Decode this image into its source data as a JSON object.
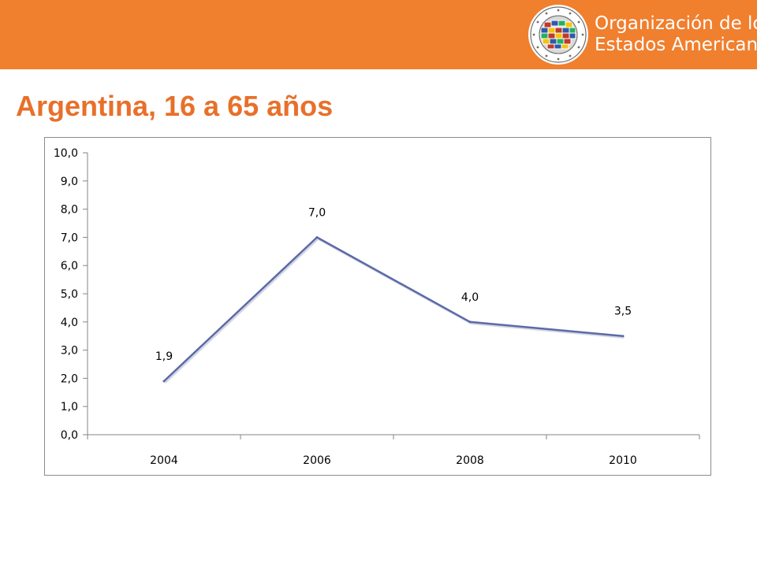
{
  "header": {
    "org_name_line1": "Organización de los",
    "org_name_line2": "Estados Americanos",
    "logo": "oas-seal-logo",
    "colors": {
      "bar": "#f07f2e",
      "title": "#e8702a"
    }
  },
  "slide": {
    "title": "Argentina, 16 a 65 años"
  },
  "chart_data": {
    "type": "line",
    "title": "",
    "xlabel": "",
    "ylabel": "",
    "categories": [
      "2004",
      "2006",
      "2008",
      "2010"
    ],
    "series": [
      {
        "values": [
          1.9,
          7.0,
          4.0,
          3.5
        ],
        "labels": [
          "1,9",
          "7,0",
          "4,0",
          "3,5"
        ],
        "color": "#5b6aa8"
      }
    ],
    "ylim": [
      0,
      10
    ],
    "yticks": [
      "0,0",
      "1,0",
      "2,0",
      "3,0",
      "4,0",
      "5,0",
      "6,0",
      "7,0",
      "8,0",
      "9,0",
      "10,0"
    ],
    "grid": false,
    "legend": "none"
  }
}
